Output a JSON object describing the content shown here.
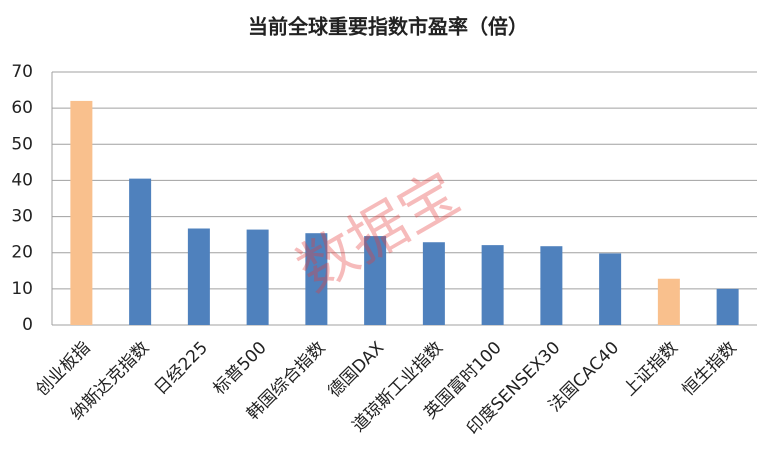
{
  "chart_data": {
    "type": "bar",
    "title": "当前全球重要指数市盈率（倍）",
    "watermark": "数据宝",
    "categories": [
      "创业板指",
      "纳斯达克指数",
      "日经225",
      "标普500",
      "韩国综合指数",
      "德国DAX",
      "道琼斯工业指数",
      "英国富时100",
      "印度SENSEX30",
      "法国CAC40",
      "上证指数",
      "恒生指数"
    ],
    "values": [
      62,
      40.5,
      26.7,
      26.4,
      25.4,
      24.6,
      22.9,
      22.1,
      21.8,
      19.8,
      12.8,
      10
    ],
    "colors": [
      "#f9c08d",
      "#4f81bd",
      "#4f81bd",
      "#4f81bd",
      "#4f81bd",
      "#4f81bd",
      "#4f81bd",
      "#4f81bd",
      "#4f81bd",
      "#4f81bd",
      "#f9c08d",
      "#4f81bd"
    ],
    "ylim": [
      0,
      70
    ],
    "yticks": [
      0,
      10,
      20,
      30,
      40,
      50,
      60,
      70
    ],
    "grid": true
  }
}
